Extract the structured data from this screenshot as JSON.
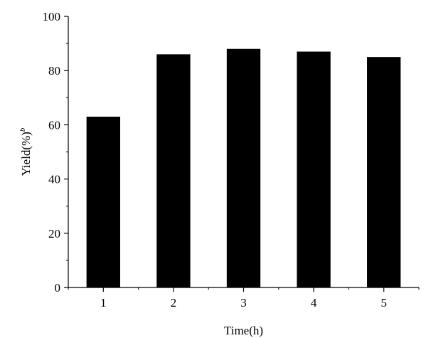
{
  "chart_data": {
    "type": "bar",
    "categories": [
      "1",
      "2",
      "3",
      "4",
      "5"
    ],
    "values": [
      63,
      86,
      88,
      87,
      85
    ],
    "title": "",
    "xlabel": "Time(h)",
    "ylabel": "Yield(%)",
    "ylabel_superscript": "b",
    "ylim": [
      0,
      100
    ],
    "yticks": [
      "0",
      "20",
      "40",
      "60",
      "80",
      "100"
    ],
    "grid": false,
    "bar_color": "#000000",
    "axis_color": "#000000"
  }
}
